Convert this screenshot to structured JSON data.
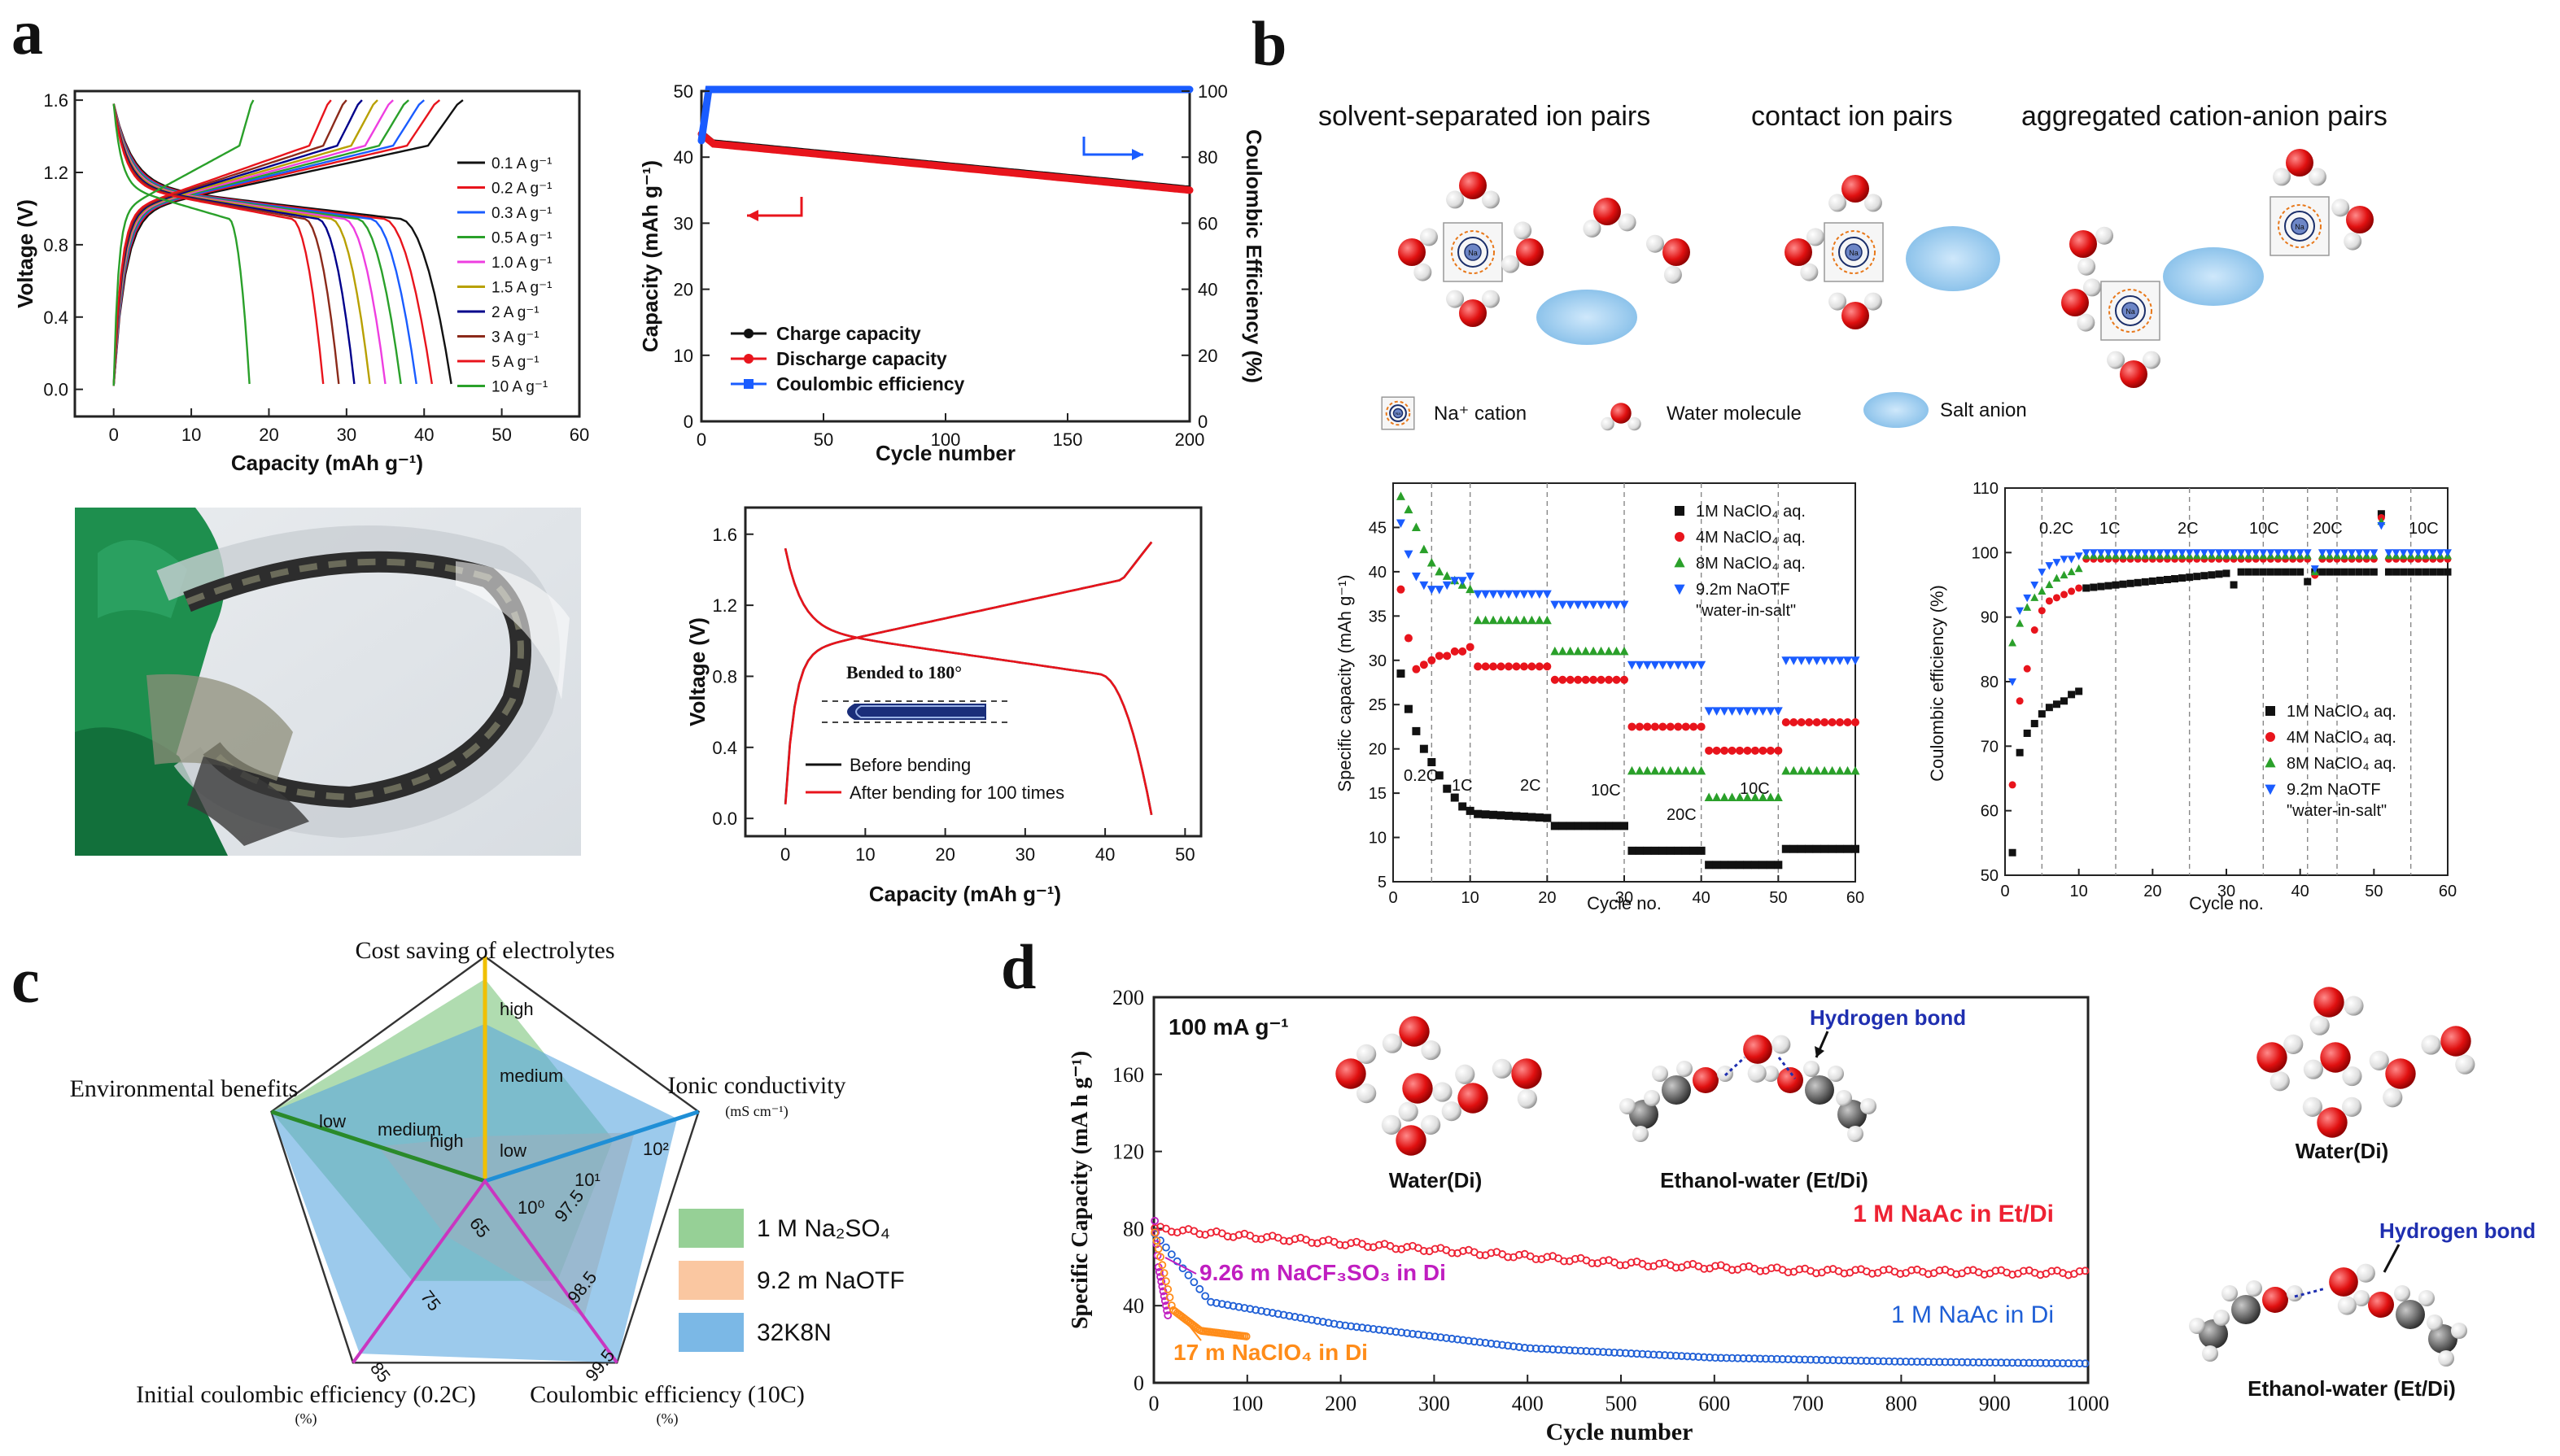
{
  "panel_labels": {
    "a": "a",
    "b": "b",
    "c": "c",
    "d": "d"
  },
  "colors": {
    "black": "#111111",
    "red": "#e8141c",
    "blue": "#1a5cff",
    "green": "#2aa02a",
    "magenta": "#cc2fc9",
    "navy": "#00008b",
    "gold": "#e6b800",
    "olive": "#7aa36a",
    "orange": "#ff8c19",
    "teal": "#1f8fd6",
    "ion_blue": "#a9d4f2",
    "oxygen": "#e01010"
  },
  "chart_data": [
    {
      "id": "a1",
      "type": "line",
      "xlabel": "Capacity (mAh g⁻¹)",
      "ylabel": "Voltage (V)",
      "xlim": [
        -5,
        60
      ],
      "ylim": [
        -0.15,
        1.65
      ],
      "xticks": [
        0,
        10,
        20,
        30,
        40,
        50,
        60
      ],
      "yticks": [
        0.0,
        0.4,
        0.8,
        1.2,
        1.6
      ],
      "legend": [
        {
          "name": "0.1 A g⁻¹",
          "color": "#111111",
          "charge_end": 45,
          "discharge_end": 43.5
        },
        {
          "name": "0.2 A g⁻¹",
          "color": "#e8141c",
          "charge_end": 42,
          "discharge_end": 41
        },
        {
          "name": "0.3 A g⁻¹",
          "color": "#1a5cff",
          "charge_end": 40,
          "discharge_end": 39
        },
        {
          "name": "0.5 A g⁻¹",
          "color": "#2aa02a",
          "charge_end": 38,
          "discharge_end": 37
        },
        {
          "name": "1.0 A g⁻¹",
          "color": "#ee3ee0",
          "charge_end": 36,
          "discharge_end": 35
        },
        {
          "name": "1.5 A g⁻¹",
          "color": "#b8a000",
          "charge_end": 34,
          "discharge_end": 33
        },
        {
          "name": "2 A g⁻¹",
          "color": "#00008b",
          "charge_end": 32,
          "discharge_end": 31
        },
        {
          "name": "3 A g⁻¹",
          "color": "#8b2a1a",
          "charge_end": 30,
          "discharge_end": 29
        },
        {
          "name": "5 A g⁻¹",
          "color": "#e8141c",
          "charge_end": 28,
          "discharge_end": 27
        },
        {
          "name": "10 A g⁻¹",
          "color": "#2aa02a",
          "charge_end": 18,
          "discharge_end": 17.5
        }
      ]
    },
    {
      "id": "a2",
      "type": "line",
      "xlabel": "Cycle number",
      "ylabel": "Capacity (mAh g⁻¹)",
      "y2label": "Coulombic Efficiency (%)",
      "xlim": [
        0,
        200
      ],
      "ylim": [
        0,
        50
      ],
      "y2lim": [
        0,
        100
      ],
      "xticks": [
        0,
        50,
        100,
        150,
        200
      ],
      "yticks": [
        0,
        10,
        20,
        30,
        40,
        50
      ],
      "y2ticks": [
        0,
        20,
        40,
        60,
        80,
        100
      ],
      "series": [
        {
          "name": "Charge capacity",
          "color": "#111111",
          "x": [
            0,
            5,
            200
          ],
          "y": [
            44,
            42.5,
            35.5
          ]
        },
        {
          "name": "Discharge capacity",
          "color": "#e8141c",
          "x": [
            0,
            5,
            200
          ],
          "y": [
            43.5,
            42,
            35
          ]
        },
        {
          "name": "Coulombic efficiency",
          "color": "#1a5cff",
          "x": [
            0,
            3,
            200
          ],
          "y2": [
            85,
            100.5,
            100.5
          ]
        }
      ]
    },
    {
      "id": "a3",
      "type": "line",
      "xlabel": "Capacity (mAh g⁻¹)",
      "ylabel": "Voltage (V)",
      "xlim": [
        -5,
        52
      ],
      "ylim": [
        -0.1,
        1.75
      ],
      "xticks": [
        0,
        10,
        20,
        30,
        40,
        50
      ],
      "yticks": [
        0.0,
        0.4,
        0.8,
        1.2,
        1.6
      ],
      "annotation": "Bended to 180°",
      "series": [
        {
          "name": "Before bending",
          "color": "#111111"
        },
        {
          "name": "After bending for 100 times",
          "color": "#e8141c"
        }
      ]
    },
    {
      "id": "b1",
      "type": "scatter",
      "xlabel": "Cycle no.",
      "ylabel": "Specific capacity (mAh g⁻¹)",
      "xlim": [
        0,
        60
      ],
      "ylim": [
        5,
        50
      ],
      "xticks": [
        0,
        10,
        20,
        30,
        40,
        50,
        60
      ],
      "yticks": [
        5,
        10,
        15,
        20,
        25,
        30,
        35,
        40,
        45
      ],
      "rate_labels": [
        "0.2C",
        "1C",
        "2C",
        "10C",
        "20C",
        "10C"
      ],
      "series": [
        {
          "name": "1M NaClO₄ aq.",
          "color": "#111111",
          "marker": "square",
          "first5": [
            28.5,
            24.5,
            22,
            20,
            18.5
          ],
          "first10": [
            17,
            15.5,
            14.5,
            13.5,
            13
          ],
          "blocks": [
            12.2,
            11.3,
            8.5,
            6.9,
            8.7
          ]
        },
        {
          "name": "4M NaClO₄ aq.",
          "color": "#e8141c",
          "marker": "circle",
          "first5": [
            38,
            32.5,
            29,
            29.5,
            30
          ],
          "first10": [
            30.5,
            30.5,
            31,
            31,
            31.5
          ],
          "blocks": [
            29.3,
            27.8,
            22.5,
            19.8,
            23
          ]
        },
        {
          "name": "8M NaClO₄ aq.",
          "color": "#2aa02a",
          "marker": "triangle-up",
          "first5": [
            48.5,
            47,
            45,
            42.5,
            41
          ],
          "first10": [
            40,
            39.5,
            39,
            38.5,
            38
          ],
          "blocks": [
            34.5,
            31,
            17.5,
            14.5,
            17.5
          ]
        },
        {
          "name": "9.2m NaOTF",
          "name2": "\"water-in-salt\"",
          "color": "#1a5cff",
          "marker": "triangle-down",
          "first5": [
            45.5,
            42,
            39.5,
            38.5,
            38
          ],
          "first10": [
            38,
            38.5,
            39,
            39,
            39.5
          ],
          "blocks": [
            37.5,
            36.3,
            29.5,
            24.3,
            30
          ]
        }
      ]
    },
    {
      "id": "b2",
      "type": "scatter",
      "xlabel": "Cycle no.",
      "ylabel": "Coulombic efficiency (%)",
      "xlim": [
        0,
        60
      ],
      "ylim": [
        50,
        110
      ],
      "xticks": [
        0,
        10,
        20,
        30,
        40,
        50,
        60
      ],
      "yticks": [
        50,
        60,
        70,
        80,
        90,
        100,
        110
      ],
      "rate_labels": [
        "0.2C",
        "1C",
        "2C",
        "10C",
        "20C",
        "10C"
      ],
      "series": [
        {
          "name": "1M NaClO₄ aq.",
          "color": "#111111",
          "marker": "square",
          "first10": [
            53.5,
            69,
            72,
            73.5,
            75,
            76,
            76.5,
            77,
            78,
            78.5
          ],
          "plateau": 97
        },
        {
          "name": "4M NaClO₄ aq.",
          "color": "#e8141c",
          "marker": "circle",
          "first10": [
            64,
            77,
            82,
            88,
            91,
            92.5,
            93,
            93.5,
            94,
            94.5
          ],
          "plateau": 99
        },
        {
          "name": "8M NaClO₄ aq.",
          "color": "#2aa02a",
          "marker": "triangle-up",
          "first10": [
            86,
            89,
            91.5,
            93,
            94,
            95,
            96,
            96.5,
            97,
            97.5
          ],
          "plateau": 99.5
        },
        {
          "name": "9.2m NaOTF",
          "name2": "\"water-in-salt\"",
          "color": "#1a5cff",
          "marker": "triangle-down",
          "first10": [
            80,
            91,
            93,
            95,
            97,
            98,
            98.5,
            99,
            99,
            99.5
          ],
          "plateau": 100
        }
      ]
    },
    {
      "id": "c",
      "type": "radar",
      "axes": [
        {
          "name": "Cost saving of electrolytes",
          "ticks": [
            "high",
            "medium",
            "low"
          ]
        },
        {
          "name": "Ionic conductivity",
          "unit": "(mS cm⁻¹)",
          "ticks": [
            "10⁰",
            "10¹",
            "10²"
          ]
        },
        {
          "name": "Coulombic efficiency (10C)",
          "unit": "(%)",
          "ticks": [
            "97.5",
            "98.5",
            "99.5"
          ]
        },
        {
          "name": "Initial coulombic efficiency (0.2C)",
          "unit": "(%)",
          "ticks": [
            "65",
            "75",
            "85"
          ]
        },
        {
          "name": "Environmental benefits",
          "ticks": [
            "low",
            "medium",
            "high"
          ]
        }
      ],
      "series": [
        {
          "name": "1 M Na₂SO₄",
          "color": "#7cc47c",
          "values": [
            0.9,
            0.6,
            0.55,
            0.55,
            1.0
          ]
        },
        {
          "name": "9.2 m NaOTF",
          "color": "#f9b98a",
          "values": [
            0.2,
            0.7,
            0.75,
            0.3,
            0.5
          ]
        },
        {
          "name": "32K8N",
          "color": "#5aa6e0",
          "values": [
            0.7,
            0.9,
            1.0,
            0.95,
            1.0
          ]
        }
      ]
    },
    {
      "id": "d",
      "type": "scatter",
      "title": "100 mA g⁻¹",
      "xlabel": "Cycle number",
      "ylabel": "Specific Capacity (mA h g⁻¹)",
      "xlim": [
        0,
        1000
      ],
      "ylim": [
        0,
        200
      ],
      "xticks": [
        0,
        100,
        200,
        300,
        400,
        500,
        600,
        700,
        800,
        900,
        1000
      ],
      "yticks": [
        0,
        40,
        80,
        120,
        160,
        200
      ],
      "series": [
        {
          "name": "1 M NaAc in Et/Di",
          "color": "#ee2233",
          "x": [
            0,
            100,
            300,
            500,
            700,
            1000
          ],
          "y": [
            80,
            76,
            69,
            62,
            58,
            57
          ]
        },
        {
          "name": "1 M NaAc in Di",
          "color": "#1f5fd6",
          "x": [
            0,
            60,
            200,
            400,
            600,
            800,
            1000
          ],
          "y": [
            78,
            42,
            30,
            18,
            13,
            11,
            10
          ]
        },
        {
          "name": "9.26 m NaCF₃SO₃ in Di",
          "color": "#c01ec0",
          "x": [
            0,
            5,
            15
          ],
          "y": [
            90,
            60,
            35
          ]
        },
        {
          "name": "17 m NaClO₄ in Di",
          "color": "#ff8c19",
          "x": [
            0,
            20,
            50,
            100
          ],
          "y": [
            80,
            38,
            27,
            24
          ]
        }
      ]
    }
  ],
  "b_structures": {
    "titles": [
      "solvent-separated ion pairs",
      "contact ion pairs",
      "aggregated cation-anion pairs"
    ],
    "legend": [
      "Na⁺ cation",
      "Water molecule",
      "Salt anion"
    ],
    "na_label": "Na"
  },
  "d_structures": {
    "water_label": "Water(Di)",
    "ethanol_label": "Ethanol-water (Et/Di)",
    "hbond_label": "Hydrogen bond"
  }
}
